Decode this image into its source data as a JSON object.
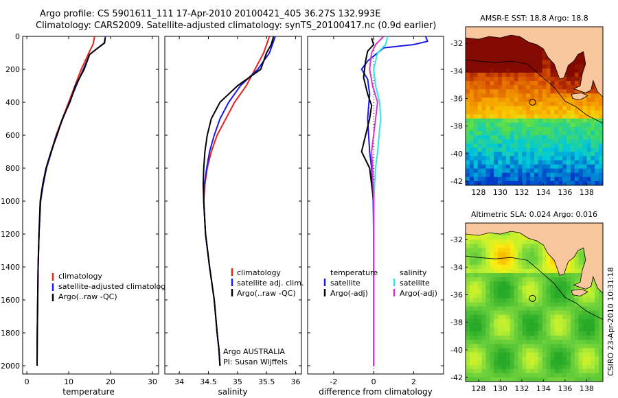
{
  "header": {
    "line1": "Argo profile: CS 5901611_111 17-Apr-2010 20100421_405 36.27S 132.993E",
    "line2": "Climatology: CARS2009. Satellite-adjusted climatology: synTS_20100417.nc (0.9d earlier)"
  },
  "colors": {
    "climatology": "#e4231b",
    "satellite": "#1a1ae6",
    "argo": "#000000",
    "salinity_satellite": "#2ee6e6",
    "salinity_argo": "#d633c8",
    "land": "#f9c79e"
  },
  "chart_data": [
    {
      "type": "line",
      "name": "temperature-profile",
      "xlabel": "temperature",
      "ylabel": "",
      "xlim": [
        -1,
        31.5
      ],
      "ylim": [
        2050,
        0
      ],
      "xticks": [
        "0",
        "10",
        "20",
        "30"
      ],
      "yticks": [
        "0",
        "200",
        "400",
        "600",
        "800",
        "1000",
        "1200",
        "1400",
        "1600",
        "1800",
        "2000"
      ],
      "legend": [
        "climatology",
        "satellite-adjusted climatology",
        "Argo(..raw -QC)"
      ],
      "series": [
        {
          "name": "climatology",
          "color": "#e4231b",
          "x": [
            16.2,
            15.8,
            15.0,
            14.3,
            13.0,
            11.5,
            10.0,
            8.5,
            7.0,
            5.8,
            4.6,
            3.8,
            3.2,
            2.9,
            2.7,
            2.6,
            2.5,
            2.45
          ],
          "y": [
            0,
            50,
            90,
            130,
            200,
            300,
            400,
            500,
            600,
            700,
            800,
            900,
            1000,
            1200,
            1400,
            1600,
            1800,
            1880
          ]
        },
        {
          "name": "satellite-adjusted climatology",
          "color": "#1a1ae6",
          "x": [
            18.8,
            18.5,
            17.0,
            15.0,
            13.5,
            11.8,
            10.2,
            8.6,
            7.1,
            5.9,
            4.7,
            3.9,
            3.3,
            2.9,
            2.7,
            2.6,
            2.5,
            2.45
          ],
          "y": [
            0,
            40,
            70,
            110,
            200,
            300,
            400,
            500,
            600,
            700,
            800,
            900,
            1000,
            1200,
            1400,
            1600,
            1800,
            2000
          ]
        },
        {
          "name": "Argo(..raw -QC)",
          "color": "#000000",
          "x": [
            18.7,
            18.6,
            16.5,
            15.0,
            13.7,
            11.6,
            10.3,
            8.5,
            7.2,
            5.8,
            4.6,
            3.8,
            3.2,
            2.9,
            2.7,
            2.6,
            2.5,
            2.45
          ],
          "y": [
            10,
            40,
            80,
            110,
            200,
            300,
            400,
            500,
            600,
            700,
            800,
            900,
            1000,
            1200,
            1400,
            1600,
            1800,
            2000
          ]
        }
      ]
    },
    {
      "type": "line",
      "name": "salinity-profile",
      "xlabel": "salinity",
      "ylabel": "",
      "xlim": [
        33.75,
        36.1
      ],
      "ylim": [
        2050,
        0
      ],
      "xticks": [
        "34",
        "34.5",
        "35",
        "35.5",
        "36"
      ],
      "yticks": [],
      "legend": [
        "climatology",
        "satellite adj. clim.",
        "Argo(..raw -QC)"
      ],
      "annotations": [
        "Argo AUSTRALIA",
        "PI: Susan Wijffels"
      ],
      "series": [
        {
          "name": "climatology",
          "color": "#e4231b",
          "x": [
            35.55,
            35.5,
            35.45,
            35.3,
            35.15,
            34.95,
            34.8,
            34.65,
            34.55,
            34.48,
            34.44,
            34.42,
            34.45,
            34.52,
            34.6,
            34.65,
            34.68,
            34.7
          ],
          "y": [
            0,
            50,
            100,
            200,
            300,
            400,
            500,
            600,
            700,
            800,
            900,
            1000,
            1200,
            1400,
            1600,
            1800,
            1900,
            2000
          ]
        },
        {
          "name": "satellite adj. clim.",
          "color": "#1a1ae6",
          "x": [
            35.65,
            35.6,
            35.55,
            35.35,
            35.05,
            34.85,
            34.7,
            34.6,
            34.52,
            34.47,
            34.43,
            34.42,
            34.45,
            34.52,
            34.6,
            34.65,
            34.68,
            34.7
          ],
          "y": [
            0,
            50,
            100,
            200,
            300,
            400,
            500,
            600,
            700,
            800,
            900,
            1000,
            1200,
            1400,
            1600,
            1800,
            1900,
            2000
          ]
        },
        {
          "name": "Argo(..raw -QC)",
          "color": "#000000",
          "x": [
            35.62,
            35.58,
            35.5,
            35.4,
            35.0,
            34.7,
            34.55,
            34.48,
            34.44,
            34.42,
            34.41,
            34.42,
            34.45,
            34.52,
            34.6,
            34.65,
            34.68,
            34.7
          ],
          "y": [
            0,
            50,
            100,
            200,
            300,
            400,
            500,
            600,
            700,
            800,
            900,
            1000,
            1200,
            1400,
            1600,
            1800,
            1900,
            2000
          ]
        }
      ]
    },
    {
      "type": "line",
      "name": "difference-profile",
      "xlabel": "difference from climatology",
      "ylabel": "",
      "xlim": [
        -3.3,
        3.5
      ],
      "ylim": [
        2050,
        0
      ],
      "xticks": [
        "-2",
        "0",
        "2"
      ],
      "yticks": [],
      "legend": [
        "temperature",
        "satellite",
        "Argo(-adj)",
        "salinity",
        "satellite",
        "Argo(-adj)"
      ],
      "series": [
        {
          "name": "temperature satellite",
          "color": "#1a1ae6",
          "x": [
            2.6,
            2.7,
            2.0,
            0.5,
            -0.3,
            -0.6,
            -0.3,
            -0.2,
            -0.3,
            -0.2,
            -0.1,
            -0.05,
            -0.02,
            0.0,
            0.0,
            0.0,
            0.0
          ],
          "y": [
            0,
            30,
            50,
            70,
            150,
            200,
            260,
            350,
            500,
            700,
            800,
            900,
            1000,
            1200,
            1500,
            1800,
            2000
          ]
        },
        {
          "name": "temperature Argo(-adj)",
          "color": "#000000",
          "x": [
            -0.1,
            0.0,
            -0.3,
            -0.4,
            -0.5,
            -0.3,
            -0.1,
            -0.2,
            -0.6,
            -0.2,
            -0.1,
            0.0,
            0.0,
            0.0,
            0.0
          ],
          "y": [
            10,
            50,
            90,
            150,
            250,
            350,
            420,
            500,
            700,
            800,
            900,
            1000,
            1300,
            1600,
            2000
          ]
        },
        {
          "name": "salinity satellite",
          "color": "#2ee6e6",
          "x": [
            0.7,
            0.6,
            0.2,
            0.0,
            0.1,
            0.3,
            0.35,
            0.2,
            0.1,
            0.05,
            0.02,
            0.0,
            0.0,
            0.0
          ],
          "y": [
            0,
            50,
            100,
            200,
            300,
            400,
            500,
            700,
            800,
            900,
            1000,
            1300,
            1700,
            2000
          ]
        },
        {
          "name": "salinity Argo(-adj)",
          "color": "#d633c8",
          "x": [
            0.5,
            0.1,
            -0.1,
            -0.2,
            -0.05,
            0.2,
            0.1,
            0.0,
            -0.1,
            -0.05,
            0.0,
            0.0,
            0.0
          ],
          "y": [
            0,
            50,
            100,
            200,
            300,
            400,
            500,
            600,
            700,
            800,
            1000,
            1500,
            2000
          ]
        }
      ]
    },
    {
      "type": "heatmap",
      "name": "sst-map",
      "title": "AMSR-E SST: 18.8 Argo: 18.8",
      "xlim": [
        126.8,
        139.5
      ],
      "ylim": [
        -42.3,
        -30.8
      ],
      "xticks": [
        "128",
        "130",
        "132",
        "134",
        "136",
        "138"
      ],
      "yticks": [
        "-32",
        "-34",
        "-36",
        "-38",
        "-40",
        "-42"
      ],
      "marker": {
        "lon": 132.993,
        "lat": -36.27
      }
    },
    {
      "type": "heatmap",
      "name": "sla-map",
      "title": "Altimetric SLA: 0.024 Argo: 0.016",
      "xlim": [
        126.8,
        139.5
      ],
      "ylim": [
        -42.3,
        -30.8
      ],
      "xticks": [
        "128",
        "130",
        "132",
        "134",
        "136",
        "138"
      ],
      "yticks": [
        "-32",
        "-34",
        "-36",
        "-38",
        "-40",
        "-42"
      ],
      "marker": {
        "lon": 132.993,
        "lat": -36.27
      }
    }
  ],
  "footer": {
    "credit": "CSIRO 23-Apr-2010 10:31:18"
  }
}
